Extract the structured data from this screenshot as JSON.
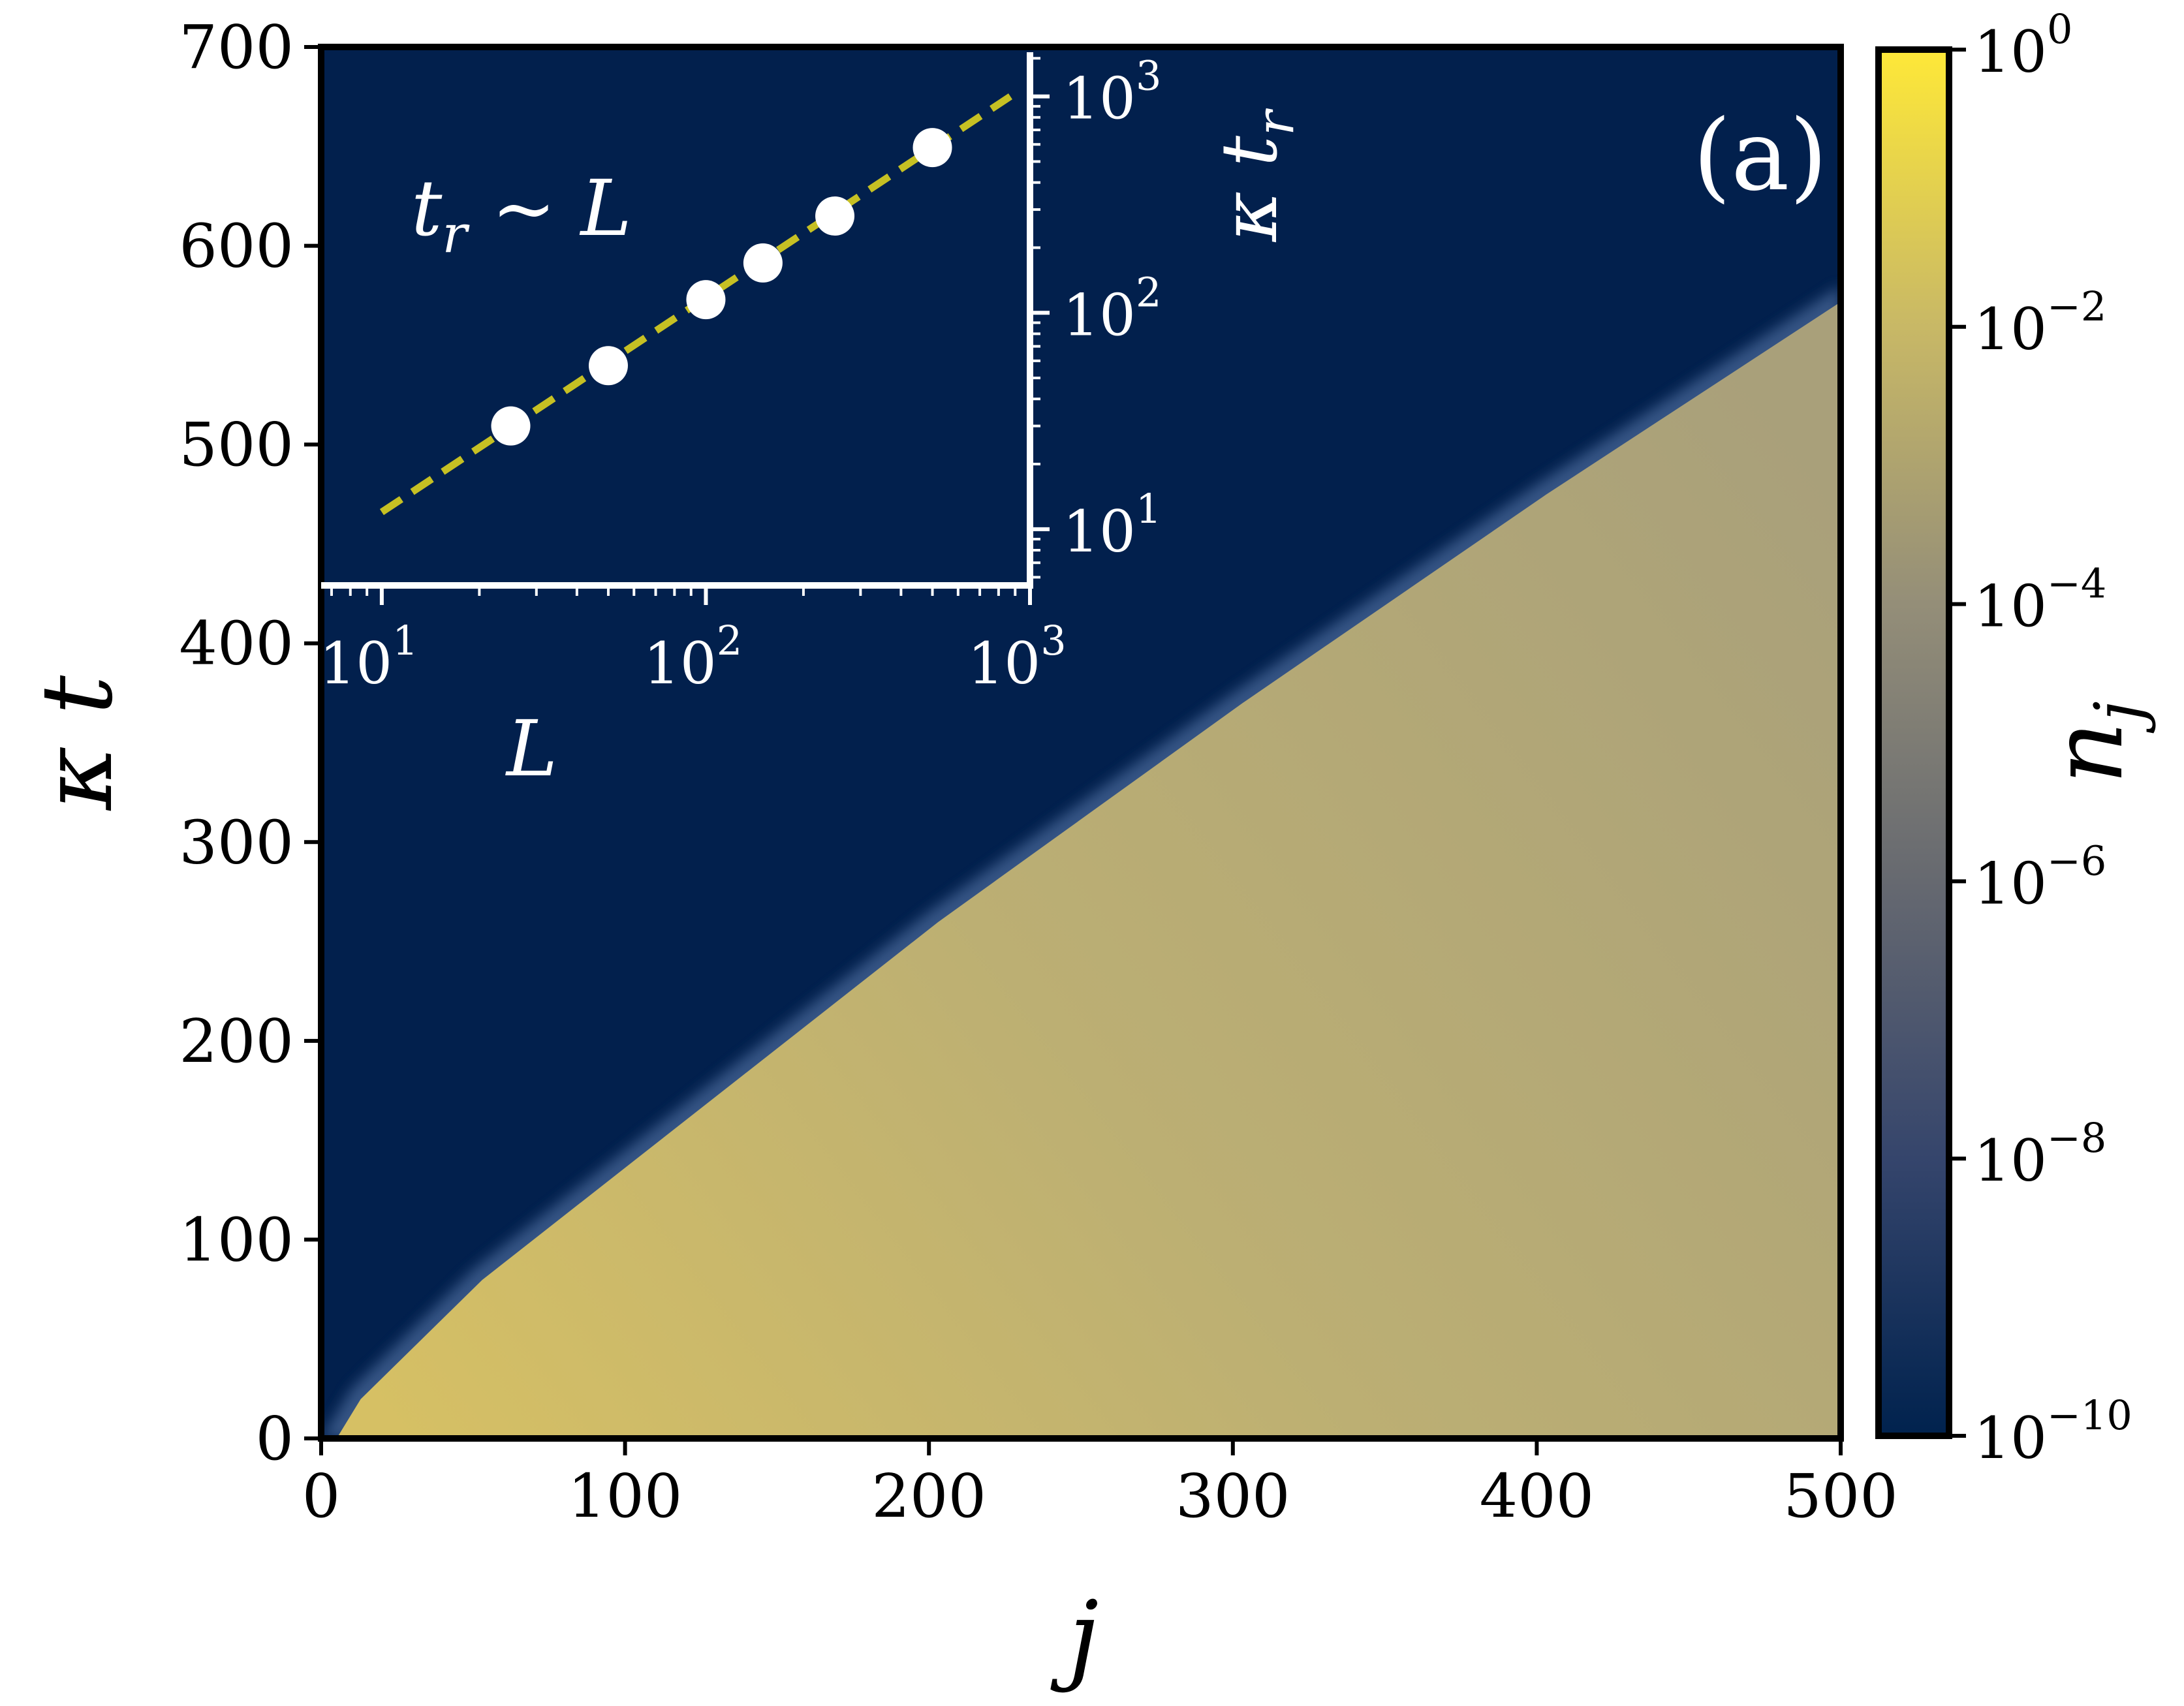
{
  "chart_data": [
    {
      "type": "heatmap",
      "xlabel": "j",
      "ylabel": "κ t",
      "panel_label": "(a)",
      "xlim": [
        0,
        500
      ],
      "ylim": [
        0,
        700
      ],
      "x_ticks": [
        0,
        100,
        200,
        300,
        400,
        500
      ],
      "y_ticks": [
        0,
        100,
        200,
        300,
        400,
        500,
        600,
        700
      ],
      "front": {
        "description_points_j": [
          0,
          10,
          50,
          100,
          200,
          300,
          400,
          500
        ],
        "description_points_kt": [
          0,
          25,
          85,
          145,
          265,
          375,
          480,
          580
        ]
      },
      "colors": {
        "background": "#02204d",
        "filled_low": "#d6c064",
        "filled_high": "#a9a07a"
      },
      "colorbar": {
        "label": "n_j",
        "label_base": "n",
        "label_sub": "j",
        "scale": "log",
        "range": [
          1e-10,
          1
        ],
        "ticks": [
          {
            "base": "10",
            "exp": "0"
          },
          {
            "base": "10",
            "exp": "−2"
          },
          {
            "base": "10",
            "exp": "−4"
          },
          {
            "base": "10",
            "exp": "−6"
          },
          {
            "base": "10",
            "exp": "−8"
          },
          {
            "base": "10",
            "exp": "−10"
          }
        ],
        "colors": [
          "#00224e",
          "#35456c",
          "#666970",
          "#948e78",
          "#c8b866",
          "#fee838"
        ]
      }
    },
    {
      "type": "scatter",
      "inset": true,
      "xlabel": "L",
      "ylabel": "κ t_r",
      "ylabel_base": "κ t",
      "ylabel_sub": "r",
      "annotation_base": "t",
      "annotation_sub": "r",
      "annotation_rest": " ∼ L",
      "xscale": "log",
      "yscale": "log",
      "xlim": [
        6.5,
        1000
      ],
      "ylim": [
        5.5,
        1600
      ],
      "x_ticks": [
        {
          "base": "10",
          "exp": "1"
        },
        {
          "base": "10",
          "exp": "2"
        },
        {
          "base": "10",
          "exp": "3"
        }
      ],
      "y_ticks": [
        {
          "base": "10",
          "exp": "1"
        },
        {
          "base": "10",
          "exp": "2"
        },
        {
          "base": "10",
          "exp": "3"
        }
      ],
      "points": {
        "x": [
          25,
          50,
          100,
          150,
          250,
          500
        ],
        "y": [
          30,
          57,
          115,
          170,
          280,
          580
        ]
      },
      "fit": {
        "style": "dashed",
        "color": "#c6c023",
        "x": [
          10,
          870
        ],
        "y": [
          12,
          1000
        ]
      }
    }
  ]
}
